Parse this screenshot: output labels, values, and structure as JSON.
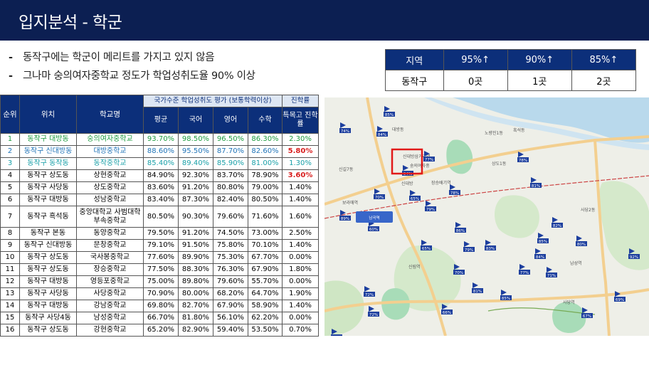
{
  "slide": {
    "title": "입지분석 - 학군"
  },
  "bullets": [
    "동작구에는 학군이 메리트를 가지고 있지 않음",
    "그나마 숭의여자중학교 정도가 학업성취도율 90% 이상"
  ],
  "bullet_dash": "-",
  "summary": {
    "headers": [
      "지역",
      "95%↑",
      "90%↑",
      "85%↑"
    ],
    "row": [
      "동작구",
      "0곳",
      "1곳",
      "2곳"
    ]
  },
  "table": {
    "headers": {
      "rank": "순위",
      "location": "위치",
      "school": "학교명",
      "group": "국가수준 학업성취도 평가 (보통학력이상)",
      "progress": "진학률",
      "avg": "평균",
      "korean": "국어",
      "english": "영어",
      "math": "수학",
      "special": "특목고 진학률"
    },
    "rows": [
      {
        "rank": "1",
        "loc": "동작구 대방동",
        "school": "숭의여자중학교",
        "avg": "93.70%",
        "kor": "98.50%",
        "eng": "96.50%",
        "math": "86.30%",
        "sp": "2.30%"
      },
      {
        "rank": "2",
        "loc": "동작구 신대방동",
        "school": "대방중학교",
        "avg": "88.60%",
        "kor": "95.50%",
        "eng": "87.70%",
        "math": "82.60%",
        "sp": "5.80%"
      },
      {
        "rank": "3",
        "loc": "동작구 동작동",
        "school": "동작중학교",
        "avg": "85.40%",
        "kor": "89.40%",
        "eng": "85.90%",
        "math": "81.00%",
        "sp": "1.30%"
      },
      {
        "rank": "4",
        "loc": "동작구 상도동",
        "school": "상현중학교",
        "avg": "84.90%",
        "kor": "92.30%",
        "eng": "83.70%",
        "math": "78.90%",
        "sp": "3.60%"
      },
      {
        "rank": "5",
        "loc": "동작구 사당동",
        "school": "상도중학교",
        "avg": "83.60%",
        "kor": "91.20%",
        "eng": "80.80%",
        "math": "79.00%",
        "sp": "1.40%"
      },
      {
        "rank": "6",
        "loc": "동작구 대방동",
        "school": "성남중학교",
        "avg": "83.40%",
        "kor": "87.30%",
        "eng": "82.40%",
        "math": "80.50%",
        "sp": "1.40%"
      },
      {
        "rank": "7",
        "loc": "동작구 흑석동",
        "school": "중앙대학교 사범대학부속중학교",
        "avg": "80.50%",
        "kor": "90.30%",
        "eng": "79.60%",
        "math": "71.60%",
        "sp": "1.60%"
      },
      {
        "rank": "8",
        "loc": "동작구 본동",
        "school": "동양중학교",
        "avg": "79.50%",
        "kor": "91.20%",
        "eng": "74.50%",
        "math": "73.00%",
        "sp": "2.50%"
      },
      {
        "rank": "9",
        "loc": "동작구 신대방동",
        "school": "문창중학교",
        "avg": "79.10%",
        "kor": "91.50%",
        "eng": "75.80%",
        "math": "70.10%",
        "sp": "1.40%"
      },
      {
        "rank": "10",
        "loc": "동작구 상도동",
        "school": "국사봉중학교",
        "avg": "77.60%",
        "kor": "89.90%",
        "eng": "75.30%",
        "math": "67.70%",
        "sp": "0.00%"
      },
      {
        "rank": "11",
        "loc": "동작구 상도동",
        "school": "장승중학교",
        "avg": "77.50%",
        "kor": "88.30%",
        "eng": "76.30%",
        "math": "67.90%",
        "sp": "1.80%"
      },
      {
        "rank": "12",
        "loc": "동작구 대방동",
        "school": "영등포중학교",
        "avg": "75.00%",
        "kor": "89.80%",
        "eng": "79.60%",
        "math": "55.70%",
        "sp": "0.00%"
      },
      {
        "rank": "13",
        "loc": "동작구 사당동",
        "school": "사당중학교",
        "avg": "70.90%",
        "kor": "80.00%",
        "eng": "68.20%",
        "math": "64.70%",
        "sp": "1.90%"
      },
      {
        "rank": "14",
        "loc": "동작구 대방동",
        "school": "강남중학교",
        "avg": "69.80%",
        "kor": "82.70%",
        "eng": "67.90%",
        "math": "58.90%",
        "sp": "1.40%"
      },
      {
        "rank": "15",
        "loc": "동작구 사당4동",
        "school": "남성중학교",
        "avg": "66.70%",
        "kor": "81.80%",
        "eng": "56.10%",
        "math": "62.20%",
        "sp": "0.00%"
      },
      {
        "rank": "16",
        "loc": "동작구 상도동",
        "school": "강현중학교",
        "avg": "65.20%",
        "kor": "82.90%",
        "eng": "59.40%",
        "math": "53.50%",
        "sp": "0.70%"
      }
    ]
  },
  "map": {
    "flags": [
      "85%",
      "74%",
      "84%",
      "94%",
      "70%",
      "65%",
      "78%",
      "79%",
      "89%",
      "60%",
      "72%",
      "66%",
      "75%",
      "85%",
      "81%",
      "78%",
      "82%",
      "83%",
      "67%",
      "86%",
      "84%",
      "77%",
      "71%",
      "79%",
      "92%",
      "65%",
      "80%",
      "70%",
      "81%",
      "85%",
      "72%",
      "69%",
      "77%"
    ],
    "places": [
      "노량진1동",
      "흑석동",
      "대방동",
      "신길7동",
      "신대방",
      "상도1동",
      "신림역",
      "사당2동",
      "사당역",
      "남성역",
      "신대방삼거리역",
      "보라매역",
      "장승배기역",
      "숭의여자중"
    ],
    "station_label": "남곡역",
    "colors": {
      "water": "#b9d9ec",
      "park": "#d5e9cb",
      "road": "#f3cf8f",
      "flag": "#1d3f9e",
      "highlight": "#e11a1a"
    }
  }
}
